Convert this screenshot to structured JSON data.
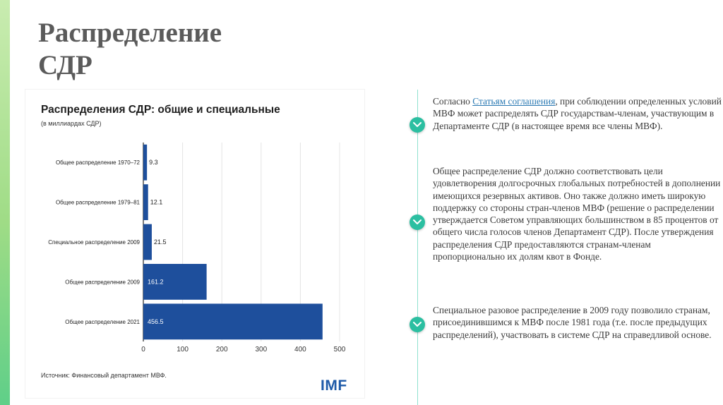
{
  "slide": {
    "title_line1": "Распределение",
    "title_line2": "СДР"
  },
  "chart_card": {
    "title": "Распределения СДР: общие и специальные",
    "subtitle": "(в миллиардах СДР)",
    "source": "Источник: Финансовый департамент МВФ.",
    "logo_text": "IMF"
  },
  "chart_data": {
    "type": "bar",
    "orientation": "horizontal",
    "title": "Распределения СДР: общие и специальные",
    "subtitle": "(в миллиардах СДР)",
    "categories": [
      "Общее распределение 1970–72",
      "Общее распределение 1979–81",
      "Специальное распределение 2009",
      "Общее распределение 2009",
      "Общее распределение 2021"
    ],
    "values": [
      9.3,
      12.1,
      21.5,
      161.2,
      456.5
    ],
    "value_labels": [
      "9.3",
      "12.1",
      "21.5",
      "161.2",
      "456.5"
    ],
    "xlim": [
      0,
      500
    ],
    "xticks": [
      0,
      100,
      200,
      300,
      400,
      500
    ],
    "xtick_labels": [
      "0",
      "100",
      "200",
      "300",
      "400",
      "500"
    ],
    "grid": "vertical",
    "bar_color": "#1e4f9c",
    "source": "Источник: Финансовый департамент МВФ."
  },
  "paragraphs": {
    "p1_prefix": "Согласно ",
    "p1_link": "Статьям соглашения",
    "p1_suffix": ", при соблюдении определенных условий МВФ может распределять СДР государствам-членам, участвующим в Департаменте СДР (в настоящее время все члены МВФ).",
    "p2": "Общее распределение СДР должно соответствовать цели удовлетворения долгосрочных глобальных потребностей в дополнении имеющихся резервных активов. Оно также должно иметь широкую поддержку со стороны стран-членов МВФ (решение о распределении утверждается Советом управляющих большинством в 85 процентов от общего числа голосов членов Департамент СДР). После утверждения распределения СДР предоставляются странам-членам пропорционально их долям квот в Фонде.",
    "p3": "Специальное разовое распределение в 2009 году позволило странам, присоединившимся к МВФ после 1981 года (т.е. после предыдущих распределений), участвовать в системе СДР на справедливой основе."
  },
  "colors": {
    "accent": "#2bbfa1",
    "timeline": "#8ee0cf",
    "link": "#2a79b3",
    "bar": "#1e4f9c"
  },
  "icons": {
    "timeline_node": "chevron-down-icon"
  }
}
